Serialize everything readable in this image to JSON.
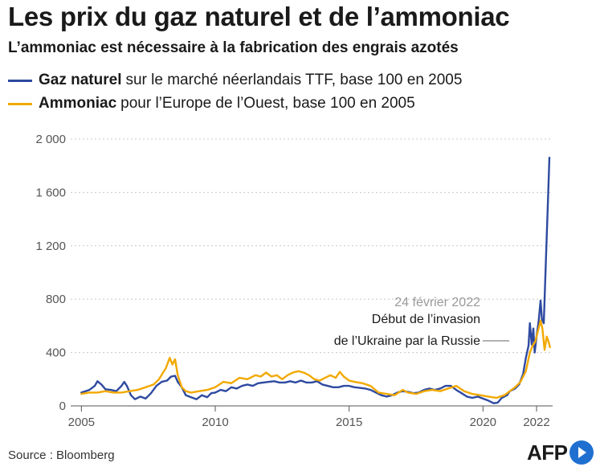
{
  "header": {
    "title": "Les prix du gaz naturel et de l’ammoniac",
    "subtitle": "L’ammoniac est nécessaire à la fabrication des engrais azotés"
  },
  "legend": [
    {
      "name": "Gaz naturel",
      "desc": "sur le marché néerlandais TTF, base 100 en 2005",
      "color": "#2e4aa0"
    },
    {
      "name": "Ammoniac",
      "desc": "pour l’Europe de l’Ouest, base 100 en 2005",
      "color": "#f2a900"
    }
  ],
  "annotation": {
    "date": "24 février 2022",
    "line1": "Début de l’invasion",
    "line2": "de l’Ukraine par la Russie"
  },
  "footer": {
    "source": "Source : Bloomberg",
    "brand": "AFP"
  },
  "colors": {
    "gas": "#2e4aa0",
    "ammonia": "#f2a900",
    "grid": "#c8c8c8",
    "axis": "#555555",
    "tick_label": "#555555",
    "annotation_date": "#9a9a9a",
    "brand_dot": "#1f6fd1"
  },
  "chart_data": {
    "type": "line",
    "title": "Les prix du gaz naturel et de l’ammoniac",
    "subtitle": "L’ammoniac est nécessaire à la fabrication des engrais azotés",
    "xlabel": "",
    "ylabel": "",
    "xlim": [
      2004.6,
      2022.6
    ],
    "ylim": [
      0,
      2000
    ],
    "x_ticks": [
      2005,
      2010,
      2015,
      2020,
      2022
    ],
    "y_ticks": [
      0,
      400,
      800,
      1200,
      1600,
      2000
    ],
    "y_tick_labels": [
      "0",
      "400",
      "800",
      "1 200",
      "1 600",
      "2 000"
    ],
    "grid": "horizontal dotted",
    "legend_position": "top-left",
    "annotations": [
      {
        "x": 2022.15,
        "y": 430,
        "text": "24 février 2022 — Début de l’invasion de l’Ukraine par la Russie"
      }
    ],
    "series": [
      {
        "name": "Gaz naturel",
        "color": "#2e4aa0",
        "points": [
          [
            2005.0,
            100
          ],
          [
            2005.3,
            120
          ],
          [
            2005.5,
            150
          ],
          [
            2005.6,
            185
          ],
          [
            2005.75,
            160
          ],
          [
            2005.9,
            125
          ],
          [
            2006.1,
            120
          ],
          [
            2006.3,
            110
          ],
          [
            2006.5,
            150
          ],
          [
            2006.6,
            180
          ],
          [
            2006.7,
            150
          ],
          [
            2006.85,
            80
          ],
          [
            2007.0,
            50
          ],
          [
            2007.2,
            70
          ],
          [
            2007.4,
            55
          ],
          [
            2007.6,
            95
          ],
          [
            2007.8,
            150
          ],
          [
            2008.0,
            180
          ],
          [
            2008.2,
            190
          ],
          [
            2008.35,
            220
          ],
          [
            2008.5,
            225
          ],
          [
            2008.6,
            180
          ],
          [
            2008.75,
            140
          ],
          [
            2008.9,
            80
          ],
          [
            2009.1,
            65
          ],
          [
            2009.3,
            50
          ],
          [
            2009.5,
            80
          ],
          [
            2009.7,
            65
          ],
          [
            2009.85,
            95
          ],
          [
            2010.0,
            100
          ],
          [
            2010.2,
            120
          ],
          [
            2010.4,
            110
          ],
          [
            2010.6,
            140
          ],
          [
            2010.8,
            130
          ],
          [
            2011.0,
            150
          ],
          [
            2011.2,
            160
          ],
          [
            2011.4,
            150
          ],
          [
            2011.6,
            170
          ],
          [
            2011.8,
            175
          ],
          [
            2012.0,
            180
          ],
          [
            2012.2,
            185
          ],
          [
            2012.4,
            175
          ],
          [
            2012.6,
            175
          ],
          [
            2012.8,
            185
          ],
          [
            2013.0,
            175
          ],
          [
            2013.2,
            190
          ],
          [
            2013.4,
            175
          ],
          [
            2013.6,
            175
          ],
          [
            2013.8,
            185
          ],
          [
            2014.0,
            160
          ],
          [
            2014.2,
            150
          ],
          [
            2014.4,
            140
          ],
          [
            2014.6,
            140
          ],
          [
            2014.8,
            150
          ],
          [
            2015.0,
            150
          ],
          [
            2015.2,
            140
          ],
          [
            2015.4,
            135
          ],
          [
            2015.6,
            130
          ],
          [
            2015.8,
            120
          ],
          [
            2016.0,
            100
          ],
          [
            2016.2,
            80
          ],
          [
            2016.4,
            70
          ],
          [
            2016.6,
            80
          ],
          [
            2016.8,
            100
          ],
          [
            2017.0,
            110
          ],
          [
            2017.2,
            105
          ],
          [
            2017.4,
            95
          ],
          [
            2017.6,
            100
          ],
          [
            2017.8,
            120
          ],
          [
            2018.0,
            130
          ],
          [
            2018.2,
            120
          ],
          [
            2018.4,
            130
          ],
          [
            2018.6,
            150
          ],
          [
            2018.8,
            150
          ],
          [
            2019.0,
            120
          ],
          [
            2019.2,
            95
          ],
          [
            2019.4,
            70
          ],
          [
            2019.6,
            60
          ],
          [
            2019.8,
            70
          ],
          [
            2020.0,
            55
          ],
          [
            2020.2,
            40
          ],
          [
            2020.4,
            20
          ],
          [
            2020.55,
            25
          ],
          [
            2020.7,
            60
          ],
          [
            2020.9,
            80
          ],
          [
            2021.0,
            110
          ],
          [
            2021.2,
            130
          ],
          [
            2021.35,
            160
          ],
          [
            2021.5,
            240
          ],
          [
            2021.6,
            360
          ],
          [
            2021.7,
            450
          ],
          [
            2021.75,
            620
          ],
          [
            2021.82,
            460
          ],
          [
            2021.88,
            580
          ],
          [
            2021.93,
            400
          ],
          [
            2022.0,
            520
          ],
          [
            2022.08,
            640
          ],
          [
            2022.15,
            790
          ],
          [
            2022.2,
            650
          ],
          [
            2022.27,
            620
          ],
          [
            2022.35,
            1100
          ],
          [
            2022.42,
            1500
          ],
          [
            2022.48,
            1860
          ]
        ]
      },
      {
        "name": "Ammoniac",
        "color": "#f2a900",
        "points": [
          [
            2005.0,
            90
          ],
          [
            2005.3,
            100
          ],
          [
            2005.6,
            100
          ],
          [
            2005.9,
            110
          ],
          [
            2006.2,
            100
          ],
          [
            2006.5,
            100
          ],
          [
            2006.8,
            110
          ],
          [
            2007.1,
            120
          ],
          [
            2007.4,
            140
          ],
          [
            2007.7,
            160
          ],
          [
            2007.9,
            200
          ],
          [
            2008.05,
            250
          ],
          [
            2008.15,
            280
          ],
          [
            2008.3,
            360
          ],
          [
            2008.4,
            310
          ],
          [
            2008.5,
            350
          ],
          [
            2008.6,
            230
          ],
          [
            2008.75,
            140
          ],
          [
            2008.9,
            110
          ],
          [
            2009.1,
            100
          ],
          [
            2009.4,
            110
          ],
          [
            2009.7,
            120
          ],
          [
            2010.0,
            140
          ],
          [
            2010.3,
            180
          ],
          [
            2010.6,
            170
          ],
          [
            2010.9,
            210
          ],
          [
            2011.2,
            200
          ],
          [
            2011.5,
            230
          ],
          [
            2011.7,
            220
          ],
          [
            2011.9,
            250
          ],
          [
            2012.1,
            220
          ],
          [
            2012.3,
            230
          ],
          [
            2012.5,
            200
          ],
          [
            2012.7,
            230
          ],
          [
            2012.9,
            250
          ],
          [
            2013.1,
            260
          ],
          [
            2013.3,
            250
          ],
          [
            2013.5,
            230
          ],
          [
            2013.7,
            200
          ],
          [
            2013.9,
            190
          ],
          [
            2014.1,
            210
          ],
          [
            2014.3,
            230
          ],
          [
            2014.5,
            210
          ],
          [
            2014.65,
            255
          ],
          [
            2014.8,
            220
          ],
          [
            2015.0,
            190
          ],
          [
            2015.2,
            180
          ],
          [
            2015.5,
            170
          ],
          [
            2015.8,
            150
          ],
          [
            2016.1,
            100
          ],
          [
            2016.4,
            90
          ],
          [
            2016.7,
            80
          ],
          [
            2017.0,
            120
          ],
          [
            2017.2,
            100
          ],
          [
            2017.5,
            90
          ],
          [
            2017.8,
            110
          ],
          [
            2018.1,
            120
          ],
          [
            2018.4,
            110
          ],
          [
            2018.7,
            130
          ],
          [
            2019.0,
            150
          ],
          [
            2019.3,
            110
          ],
          [
            2019.6,
            90
          ],
          [
            2019.9,
            80
          ],
          [
            2020.2,
            70
          ],
          [
            2020.5,
            60
          ],
          [
            2020.8,
            80
          ],
          [
            2021.0,
            110
          ],
          [
            2021.2,
            140
          ],
          [
            2021.4,
            180
          ],
          [
            2021.6,
            260
          ],
          [
            2021.75,
            400
          ],
          [
            2021.85,
            450
          ],
          [
            2021.95,
            480
          ],
          [
            2022.05,
            560
          ],
          [
            2022.15,
            640
          ],
          [
            2022.22,
            580
          ],
          [
            2022.3,
            420
          ],
          [
            2022.38,
            520
          ],
          [
            2022.45,
            480
          ],
          [
            2022.5,
            440
          ]
        ]
      }
    ]
  }
}
